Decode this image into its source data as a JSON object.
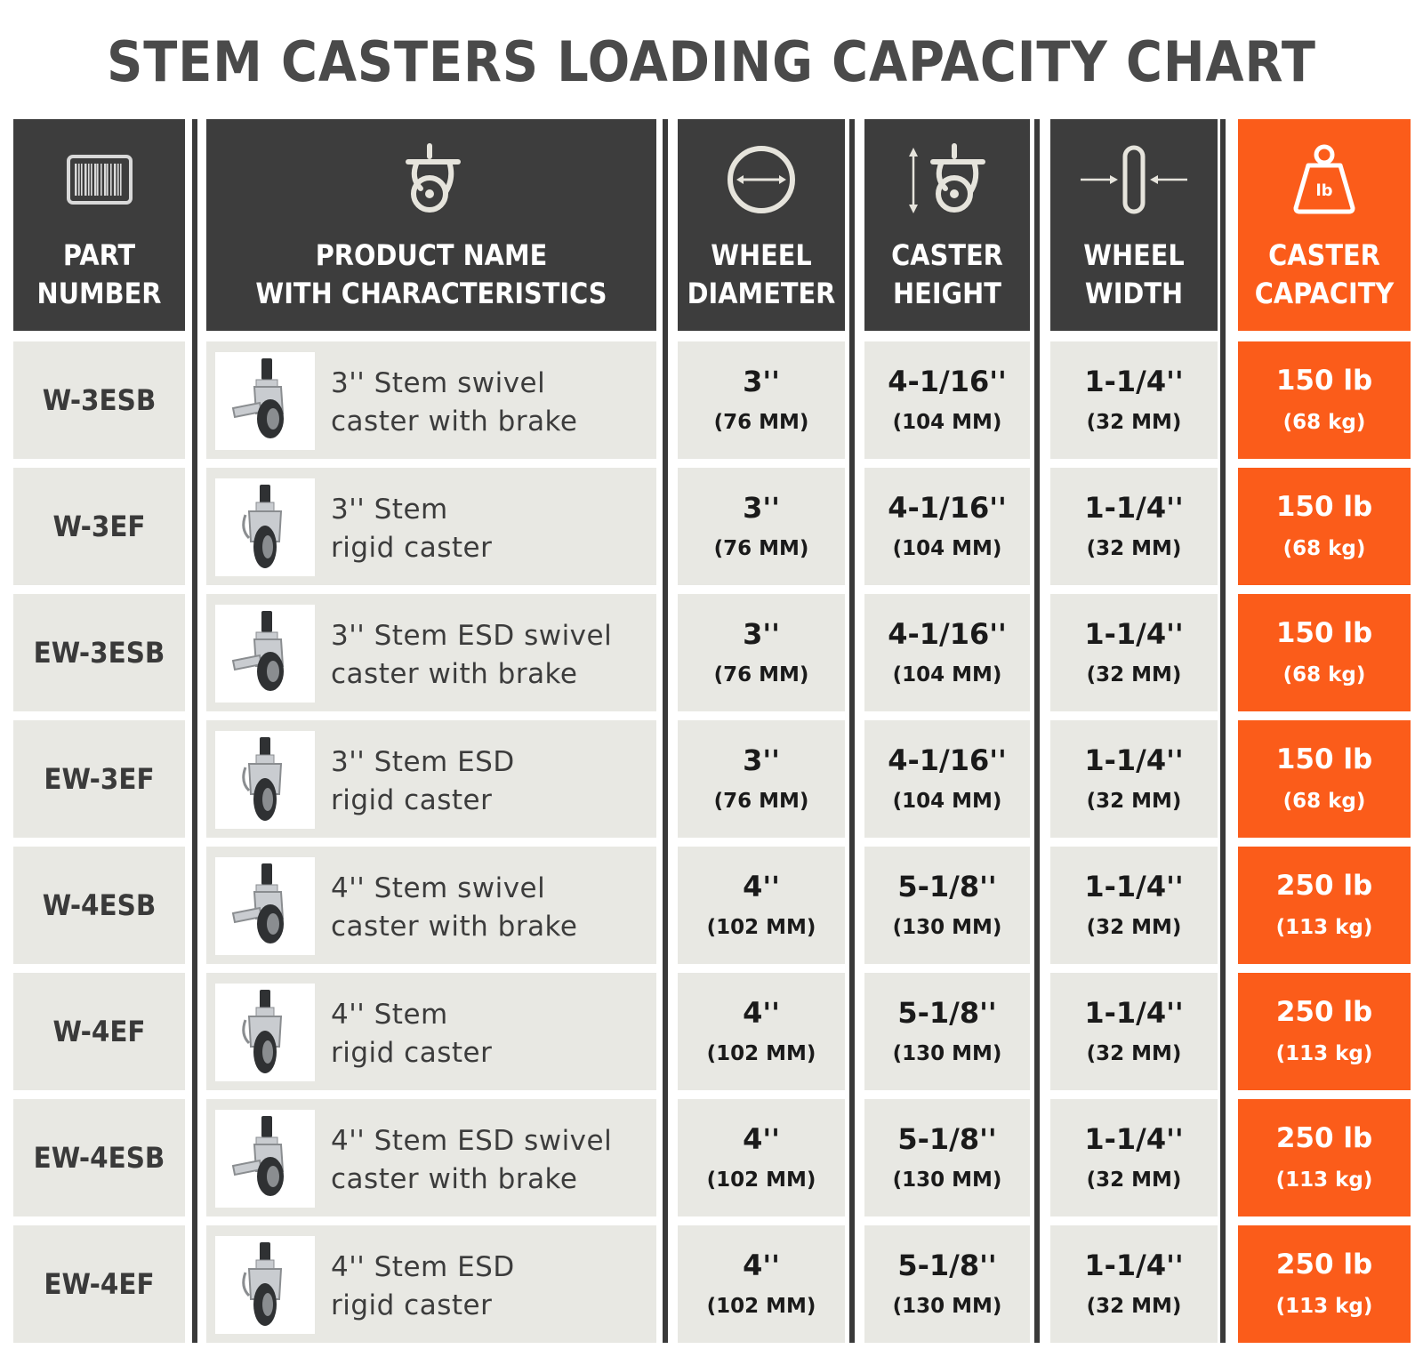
{
  "title": "STEM CASTERS LOADING CAPACITY CHART",
  "colors": {
    "header_dark": "#3d3d3d",
    "accent_orange": "#fb5c1a",
    "row_bg": "#e8e8e3",
    "separator": "#3a3a3a"
  },
  "headers": [
    {
      "label": "PART\nNUMBER",
      "icon": "barcode-icon"
    },
    {
      "label": "PRODUCT NAME\nWITH CHARACTERISTICS",
      "icon": "caster-icon"
    },
    {
      "label": "WHEEL\nDIAMETER",
      "icon": "diameter-icon"
    },
    {
      "label": "CASTER\nHEIGHT",
      "icon": "caster-height-icon"
    },
    {
      "label": "WHEEL\nWIDTH",
      "icon": "wheel-width-icon"
    },
    {
      "label": "CASTER\nCAPACITY",
      "icon": "weight-lb-icon",
      "icon_text": "lb"
    }
  ],
  "rows": [
    {
      "part": "W-3ESB",
      "name": "3'' Stem swivel\ncaster with brake",
      "image": "swivel-brake-caster",
      "diameter": "3''",
      "diameter_mm": "(76 MM)",
      "height": "4-1/16''",
      "height_mm": "(104 MM)",
      "width": "1-1/4''",
      "width_mm": "(32 MM)",
      "capacity": "150 lb",
      "capacity_kg": "(68 kg)"
    },
    {
      "part": "W-3EF",
      "name": "3'' Stem\nrigid caster",
      "image": "rigid-caster",
      "diameter": "3''",
      "diameter_mm": "(76 MM)",
      "height": "4-1/16''",
      "height_mm": "(104 MM)",
      "width": "1-1/4''",
      "width_mm": "(32 MM)",
      "capacity": "150 lb",
      "capacity_kg": "(68 kg)"
    },
    {
      "part": "EW-3ESB",
      "name": "3'' Stem ESD swivel\ncaster with brake",
      "image": "swivel-brake-caster",
      "diameter": "3''",
      "diameter_mm": "(76 MM)",
      "height": "4-1/16''",
      "height_mm": "(104 MM)",
      "width": "1-1/4''",
      "width_mm": "(32 MM)",
      "capacity": "150 lb",
      "capacity_kg": "(68 kg)"
    },
    {
      "part": "EW-3EF",
      "name": "3'' Stem ESD\nrigid caster",
      "image": "rigid-caster",
      "diameter": "3''",
      "diameter_mm": "(76 MM)",
      "height": "4-1/16''",
      "height_mm": "(104 MM)",
      "width": "1-1/4''",
      "width_mm": "(32 MM)",
      "capacity": "150 lb",
      "capacity_kg": "(68 kg)"
    },
    {
      "part": "W-4ESB",
      "name": "4'' Stem swivel\ncaster with brake",
      "image": "swivel-brake-caster",
      "diameter": "4''",
      "diameter_mm": "(102 MM)",
      "height": "5-1/8''",
      "height_mm": "(130 MM)",
      "width": "1-1/4''",
      "width_mm": "(32 MM)",
      "capacity": "250 lb",
      "capacity_kg": "(113 kg)"
    },
    {
      "part": "W-4EF",
      "name": "4'' Stem\nrigid caster",
      "image": "rigid-caster",
      "diameter": "4''",
      "diameter_mm": "(102 MM)",
      "height": "5-1/8''",
      "height_mm": "(130 MM)",
      "width": "1-1/4''",
      "width_mm": "(32 MM)",
      "capacity": "250 lb",
      "capacity_kg": "(113 kg)"
    },
    {
      "part": "EW-4ESB",
      "name": "4'' Stem ESD swivel\ncaster with brake",
      "image": "swivel-brake-caster",
      "diameter": "4''",
      "diameter_mm": "(102 MM)",
      "height": "5-1/8''",
      "height_mm": "(130 MM)",
      "width": "1-1/4''",
      "width_mm": "(32 MM)",
      "capacity": "250 lb",
      "capacity_kg": "(113 kg)"
    },
    {
      "part": "EW-4EF",
      "name": "4'' Stem ESD\nrigid caster",
      "image": "rigid-caster",
      "diameter": "4''",
      "diameter_mm": "(102 MM)",
      "height": "5-1/8''",
      "height_mm": "(130 MM)",
      "width": "1-1/4''",
      "width_mm": "(32 MM)",
      "capacity": "250 lb",
      "capacity_kg": "(113 kg)"
    }
  ]
}
